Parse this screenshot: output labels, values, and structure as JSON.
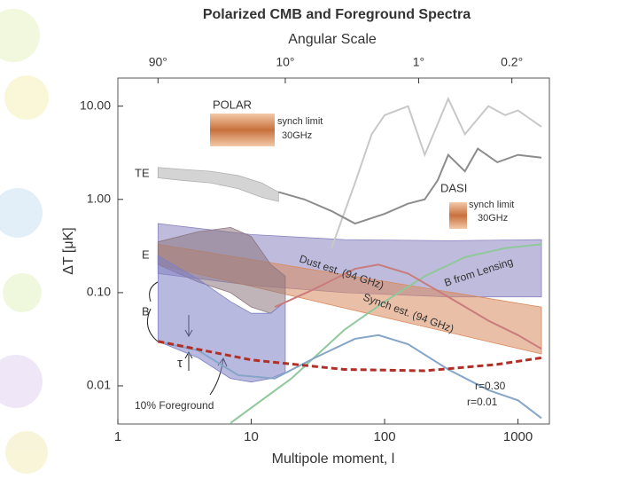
{
  "chart_data": {
    "type": "line",
    "title": "Polarized CMB and Foreground Spectra",
    "top_axis_label": "Angular Scale",
    "xlabel": "Multipole moment, l",
    "ylabel": "ΔT [μK]",
    "log_x": true,
    "log_y": true,
    "xlim": [
      1,
      1720
    ],
    "ylim": [
      0.0039,
      20
    ],
    "xticks": [
      1,
      10,
      100,
      1000
    ],
    "yticks": [
      {
        "value": 10,
        "label": "10.00"
      },
      {
        "value": 1,
        "label": "1.00"
      },
      {
        "value": 0.1,
        "label": "0.10"
      },
      {
        "value": 0.01,
        "label": "0.01"
      }
    ],
    "top_ticks": [
      {
        "value": 2,
        "label": "90°"
      },
      {
        "value": 18,
        "label": "10°"
      },
      {
        "value": 180,
        "label": "1°"
      },
      {
        "value": 900,
        "label": "0.2°"
      }
    ],
    "series": [
      {
        "kind": "band",
        "color": "#8a84c0",
        "x": [
          2,
          10,
          50,
          300,
          1500
        ],
        "lower": [
          0.16,
          0.12,
          0.1,
          0.09,
          0.09
        ],
        "upper": [
          0.55,
          0.42,
          0.37,
          0.36,
          0.37
        ]
      },
      {
        "kind": "band",
        "color": "#d98a5e",
        "x": [
          2,
          1500
        ],
        "lower": [
          0.2,
          0.022
        ],
        "upper": [
          0.33,
          0.07
        ]
      },
      {
        "kind": "band",
        "color": "#8c7680",
        "x": [
          2,
          4,
          7,
          10,
          14,
          18
        ],
        "lower": [
          0.2,
          0.13,
          0.1,
          0.07,
          0.06,
          0.08
        ],
        "upper": [
          0.35,
          0.45,
          0.5,
          0.4,
          0.2,
          0.15
        ]
      },
      {
        "kind": "band",
        "color": "#7e80c4",
        "x": [
          2,
          4,
          7,
          10,
          14,
          18
        ],
        "lower": [
          0.03,
          0.02,
          0.012,
          0.011,
          0.012,
          0.014
        ],
        "upper": [
          0.25,
          0.14,
          0.08,
          0.06,
          0.06,
          0.08
        ]
      },
      {
        "kind": "band",
        "color": "#b0b0b0",
        "x": [
          2,
          3,
          5,
          8,
          12,
          16
        ],
        "lower": [
          1.7,
          1.6,
          1.5,
          1.3,
          1.05,
          0.95
        ],
        "upper": [
          2.2,
          2.1,
          2.0,
          1.8,
          1.5,
          1.2
        ]
      },
      {
        "kind": "line",
        "color": "#c8c8c8",
        "x": [
          40,
          60,
          80,
          100,
          150,
          200,
          300,
          400,
          600,
          800,
          1000,
          1500
        ],
        "values": [
          0.3,
          1.5,
          5,
          8,
          10,
          3,
          12,
          5,
          10,
          8,
          9,
          6
        ]
      },
      {
        "kind": "line",
        "color": "#8c8c8c",
        "x": [
          16,
          25,
          40,
          60,
          100,
          150,
          200,
          250,
          300,
          400,
          500,
          700,
          1000,
          1500
        ],
        "values": [
          1.2,
          1.0,
          0.75,
          0.55,
          0.7,
          0.9,
          1.0,
          1.6,
          3.0,
          2.0,
          3.5,
          2.5,
          3.0,
          2.8
        ]
      },
      {
        "kind": "line",
        "color": "#8fc89a",
        "x": [
          7,
          20,
          50,
          100,
          200,
          400,
          800,
          1500
        ],
        "values": [
          0.004,
          0.012,
          0.04,
          0.08,
          0.15,
          0.24,
          0.3,
          0.33
        ]
      },
      {
        "kind": "line",
        "color": "#c97c7c",
        "x": [
          15,
          30,
          60,
          90,
          150,
          300,
          600,
          1000,
          1500
        ],
        "values": [
          0.07,
          0.11,
          0.18,
          0.2,
          0.16,
          0.09,
          0.05,
          0.035,
          0.025
        ]
      },
      {
        "kind": "line",
        "color": "#86a6c8",
        "x": [
          2,
          4,
          8,
          15,
          30,
          60,
          90,
          150,
          300,
          600,
          1000,
          1500
        ],
        "values": [
          0.03,
          0.024,
          0.013,
          0.012,
          0.02,
          0.032,
          0.035,
          0.028,
          0.015,
          0.009,
          0.007,
          0.0045
        ]
      },
      {
        "kind": "dashed",
        "color": "#b03028",
        "x": [
          2,
          10,
          50,
          200,
          700,
          1500
        ],
        "values": [
          0.03,
          0.019,
          0.015,
          0.0145,
          0.017,
          0.02
        ]
      }
    ],
    "annotations": [
      "TE",
      "E",
      "B",
      "τ",
      "10% Foreground",
      "Dust est. (94 GHz)",
      "Synch est. (94 GHz)",
      "B from Lensing",
      "r=0.30",
      "r=0.01",
      "POLAR",
      "synch limit",
      "30GHz",
      "DASI",
      "synch limit",
      "30GHz"
    ]
  }
}
